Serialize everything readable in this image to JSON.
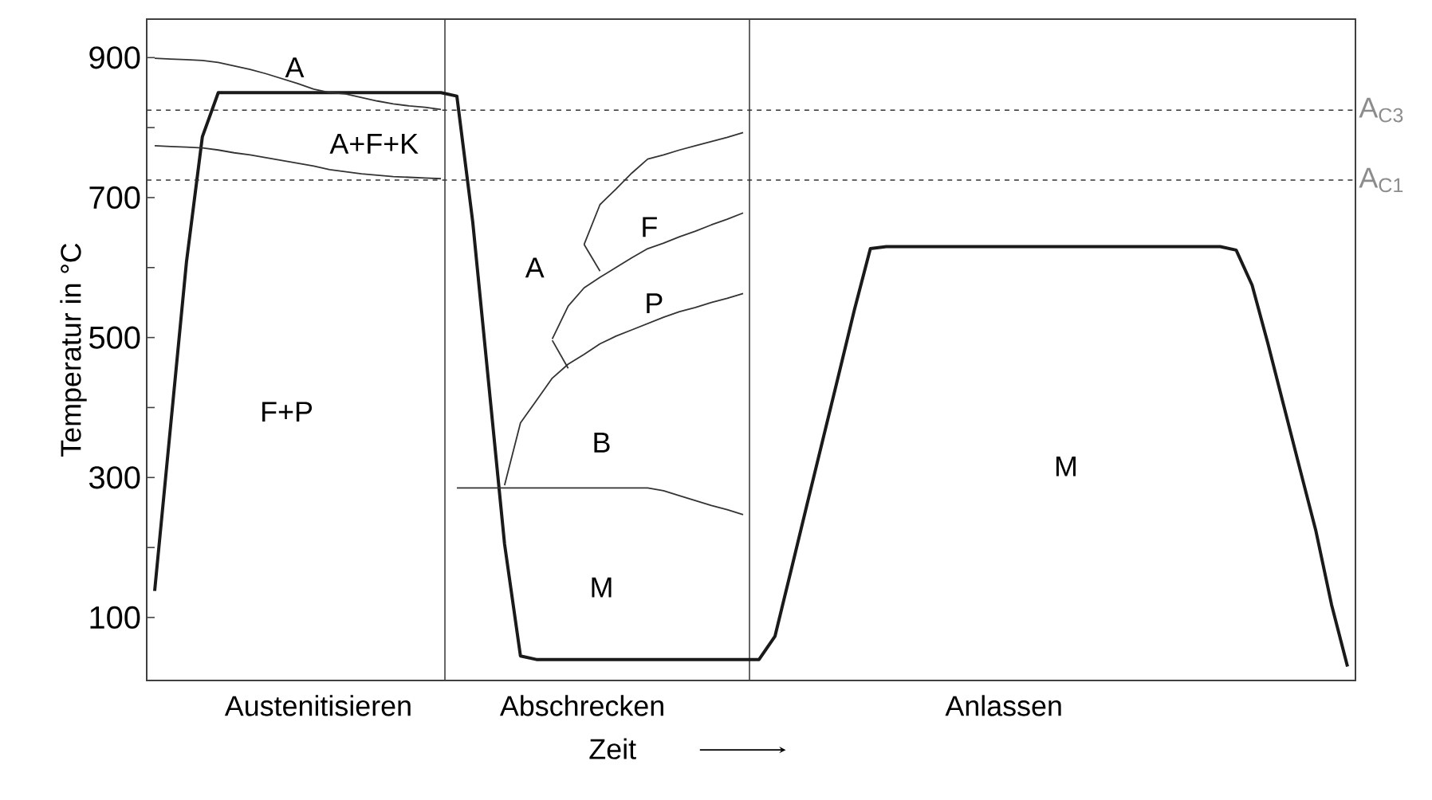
{
  "chart_data": {
    "type": "line",
    "xlabel": "Zeit",
    "ylabel": "Temperatur in °C",
    "categories": [
      null,
      null,
      null,
      null,
      null,
      null,
      null,
      null,
      null,
      null,
      null,
      null,
      null,
      null,
      null,
      null,
      null,
      null,
      null,
      null,
      null,
      null,
      null,
      null,
      null,
      null,
      null,
      null,
      null,
      null,
      null,
      null,
      null,
      null,
      null,
      null,
      null,
      null,
      null,
      null,
      null,
      null,
      null,
      null,
      null,
      null,
      null,
      null,
      null,
      null,
      null,
      null,
      null,
      null,
      null,
      null,
      null,
      null,
      null,
      null,
      null,
      null,
      null,
      null,
      null,
      null,
      null,
      null,
      null,
      null,
      null,
      null,
      null,
      null,
      null,
      null
    ],
    "ylim": [
      10,
      955
    ],
    "yticks": [
      100,
      {
        "value": 200,
        "label": null
      },
      300,
      {
        "value": 400,
        "label": null
      },
      500,
      {
        "value": 600,
        "label": null
      },
      700,
      {
        "value": 800,
        "label": null
      },
      900
    ],
    "grid": false,
    "legend": false,
    "marker": "none",
    "line_style": "solid",
    "series": [
      {
        "color": "#1a1a1a",
        "values": [
          138,
          373,
          608,
          787,
          850,
          850,
          850,
          850,
          850,
          850,
          850,
          850,
          850,
          850,
          850,
          850,
          850,
          850,
          850,
          845,
          665,
          435,
          205,
          45,
          40,
          40,
          40,
          40,
          40,
          40,
          40,
          40,
          40,
          40,
          40,
          40,
          40,
          40,
          40,
          73,
          166,
          260,
          353,
          446,
          540,
          627,
          630,
          630,
          630,
          630,
          630,
          630,
          630,
          630,
          630,
          630,
          630,
          630,
          630,
          630,
          630,
          630,
          630,
          630,
          630,
          630,
          630,
          630,
          625,
          575,
          491,
          402,
          313,
          225,
          118,
          30
        ]
      },
      {
        "color": "#333333",
        "values": [
          899,
          898,
          897,
          896,
          893,
          888,
          883,
          877,
          870,
          863,
          855,
          850,
          848,
          843,
          838,
          834,
          831,
          829,
          826,
          null,
          null,
          null,
          null,
          null,
          null,
          null,
          null,
          null,
          null,
          null,
          null,
          null,
          null,
          null,
          null,
          null,
          null,
          null,
          null,
          null,
          null,
          null,
          null,
          null,
          null,
          null,
          null,
          null,
          null,
          null,
          null,
          null,
          null,
          null,
          null,
          null,
          null,
          null,
          null,
          null,
          null,
          null,
          null,
          null,
          null,
          null,
          null,
          null,
          null,
          null,
          null,
          null,
          null,
          null,
          null,
          null
        ]
      },
      {
        "color": "#333333",
        "values": [
          774,
          773,
          772,
          771,
          768,
          764,
          761,
          757,
          753,
          749,
          745,
          740,
          737,
          734,
          732,
          730,
          729,
          728,
          727,
          null,
          null,
          null,
          null,
          null,
          null,
          null,
          null,
          null,
          null,
          null,
          null,
          null,
          null,
          null,
          null,
          null,
          null,
          null,
          null,
          null,
          null,
          null,
          null,
          null,
          null,
          null,
          null,
          null,
          null,
          null,
          null,
          null,
          null,
          null,
          null,
          null,
          null,
          null,
          null,
          null,
          null,
          null,
          null,
          null,
          null,
          null,
          null,
          null,
          null,
          null,
          null,
          null,
          null,
          null,
          null,
          null
        ]
      },
      {
        "color": "#333333",
        "values": [
          null,
          null,
          null,
          null,
          null,
          null,
          null,
          null,
          null,
          null,
          null,
          null,
          null,
          null,
          null,
          null,
          null,
          null,
          null,
          285,
          285,
          285,
          285,
          285,
          285,
          285,
          285,
          285,
          285,
          285,
          285,
          285,
          281,
          274,
          267,
          260,
          254,
          247,
          null,
          null,
          null,
          null,
          null,
          null,
          null,
          null,
          null,
          null,
          null,
          null,
          null,
          null,
          null,
          null,
          null,
          null,
          null,
          null,
          null,
          null,
          null,
          null,
          null,
          null,
          null,
          null,
          null,
          null,
          null,
          null,
          null,
          null,
          null,
          null,
          null,
          null
        ]
      },
      {
        "color": "#333333",
        "values": [
          null,
          null,
          null,
          null,
          null,
          null,
          null,
          null,
          null,
          null,
          null,
          null,
          null,
          null,
          null,
          null,
          null,
          null,
          null,
          null,
          null,
          null,
          289,
          378,
          410,
          442,
          462,
          476,
          491,
          502,
          511,
          520,
          529,
          537,
          543,
          550,
          556,
          563,
          null,
          null,
          null,
          null,
          null,
          null,
          null,
          null,
          null,
          null,
          null,
          null,
          null,
          null,
          null,
          null,
          null,
          null,
          null,
          null,
          null,
          null,
          null,
          null,
          null,
          null,
          null,
          null,
          null,
          null,
          null,
          null,
          null,
          null,
          null,
          null,
          null,
          null
        ]
      },
      {
        "color": "#333333",
        "values": [
          null,
          null,
          null,
          null,
          null,
          null,
          null,
          null,
          null,
          null,
          null,
          null,
          null,
          null,
          null,
          null,
          null,
          null,
          null,
          null,
          null,
          null,
          null,
          null,
          null,
          498,
          545,
          571,
          586,
          600,
          614,
          627,
          635,
          644,
          652,
          661,
          669,
          678,
          null,
          null,
          null,
          null,
          null,
          null,
          null,
          null,
          null,
          null,
          null,
          null,
          null,
          null,
          null,
          null,
          null,
          null,
          null,
          null,
          null,
          null,
          null,
          null,
          null,
          null,
          null,
          null,
          null,
          null,
          null,
          null,
          null,
          null,
          null,
          null,
          null,
          null
        ]
      },
      {
        "color": "#333333",
        "values": [
          null,
          null,
          null,
          null,
          null,
          null,
          null,
          null,
          null,
          null,
          null,
          null,
          null,
          null,
          null,
          null,
          null,
          null,
          null,
          null,
          null,
          null,
          null,
          null,
          null,
          496,
          456,
          null,
          null,
          null,
          null,
          null,
          null,
          null,
          null,
          null,
          null,
          null,
          null,
          null,
          null,
          null,
          null,
          null,
          null,
          null,
          null,
          null,
          null,
          null,
          null,
          null,
          null,
          null,
          null,
          null,
          null,
          null,
          null,
          null,
          null,
          null,
          null,
          null,
          null,
          null,
          null,
          null,
          null,
          null,
          null,
          null,
          null,
          null,
          null,
          null
        ]
      },
      {
        "color": "#333333",
        "values": [
          null,
          null,
          null,
          null,
          null,
          null,
          null,
          null,
          null,
          null,
          null,
          null,
          null,
          null,
          null,
          null,
          null,
          null,
          null,
          null,
          null,
          null,
          null,
          null,
          null,
          null,
          null,
          633,
          690,
          712,
          735,
          755,
          761,
          768,
          774,
          780,
          786,
          793,
          null,
          null,
          null,
          null,
          null,
          null,
          null,
          null,
          null,
          null,
          null,
          null,
          null,
          null,
          null,
          null,
          null,
          null,
          null,
          null,
          null,
          null,
          null,
          null,
          null,
          null,
          null,
          null,
          null,
          null,
          null,
          null,
          null,
          null,
          null,
          null,
          null,
          null
        ]
      },
      {
        "color": "#333333",
        "values": [
          null,
          null,
          null,
          null,
          null,
          null,
          null,
          null,
          null,
          null,
          null,
          null,
          null,
          null,
          null,
          null,
          null,
          null,
          null,
          null,
          null,
          null,
          null,
          null,
          null,
          null,
          null,
          633,
          595,
          null,
          null,
          null,
          null,
          null,
          null,
          null,
          null,
          null,
          null,
          null,
          null,
          null,
          null,
          null,
          null,
          null,
          null,
          null,
          null,
          null,
          null,
          null,
          null,
          null,
          null,
          null,
          null,
          null,
          null,
          null,
          null,
          null,
          null,
          null,
          null,
          null,
          null,
          null,
          null,
          null,
          null,
          null,
          null,
          null,
          null,
          null
        ]
      }
    ],
    "ref_lines": [
      {
        "axis": "y",
        "value": 825,
        "label": "A$_{C3}$",
        "color": "#333333",
        "line_style": "dashed"
      },
      {
        "axis": "y",
        "value": 725,
        "label": "A$_{C1}$",
        "color": "#333333",
        "line_style": "dashed"
      }
    ],
    "annotations": [
      "A",
      "A+F+K",
      "F+P",
      "A",
      "F",
      "P",
      "B",
      "M",
      "M",
      "Austenitisieren",
      "Abschrecken",
      "Anlassen"
    ]
  }
}
